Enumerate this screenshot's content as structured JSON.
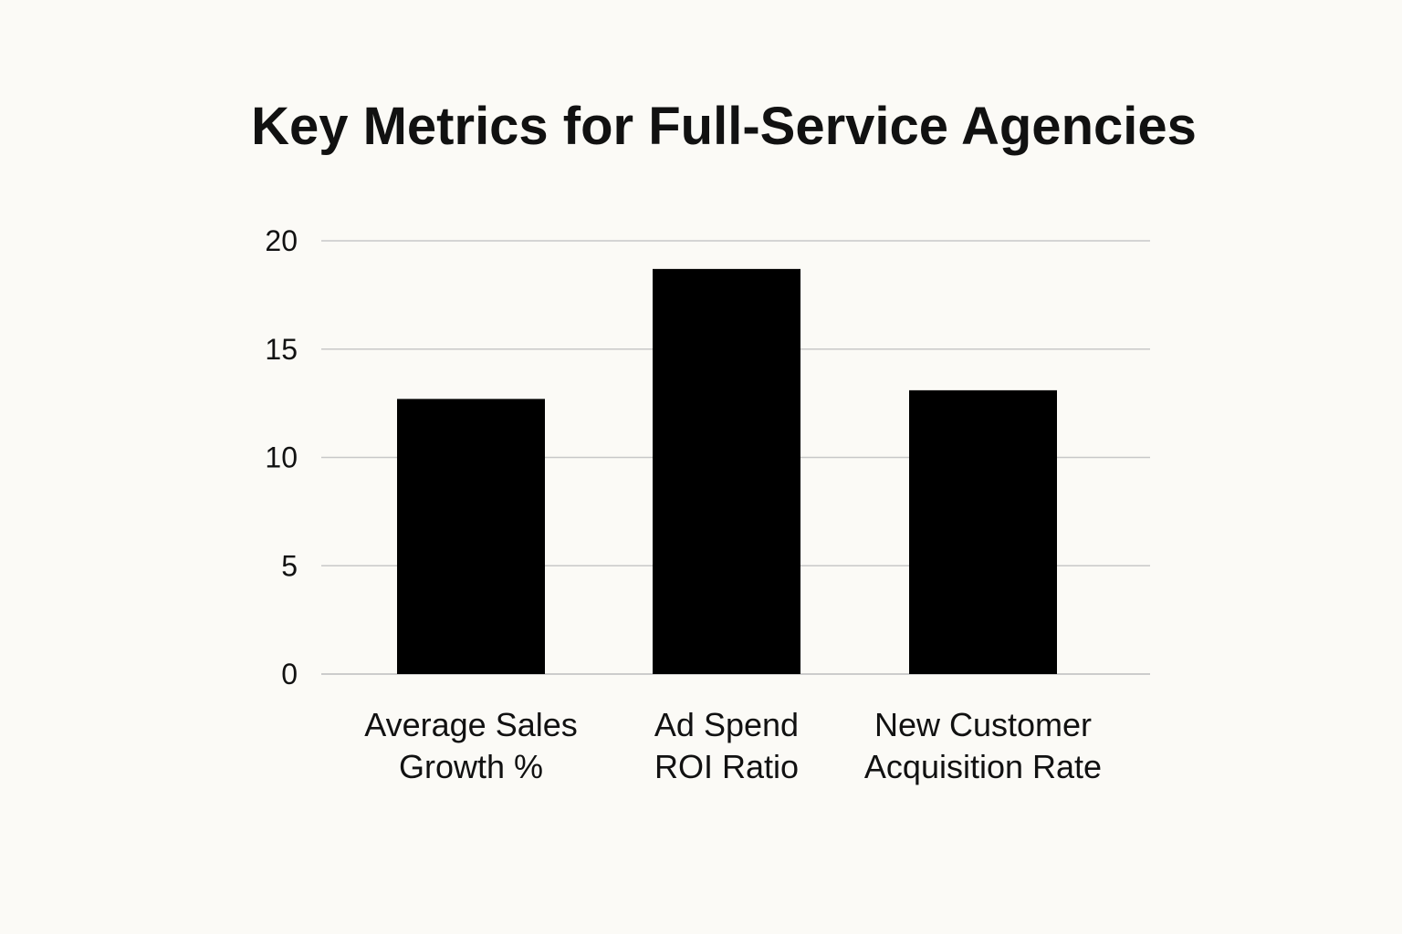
{
  "chart_data": {
    "type": "bar",
    "title": "Key Metrics for Full-Service Agencies",
    "xlabel": "",
    "ylabel": "",
    "ylim": [
      0,
      20
    ],
    "yticks": [
      0,
      5,
      10,
      15,
      20
    ],
    "grid": true,
    "categories": [
      [
        "Average Sales",
        "Growth %"
      ],
      [
        "Ad Spend",
        "ROI Ratio"
      ],
      [
        "New Customer",
        "Acquisition Rate"
      ]
    ],
    "values": [
      12.7,
      18.7,
      13.1
    ],
    "bar_color": "#000000"
  }
}
